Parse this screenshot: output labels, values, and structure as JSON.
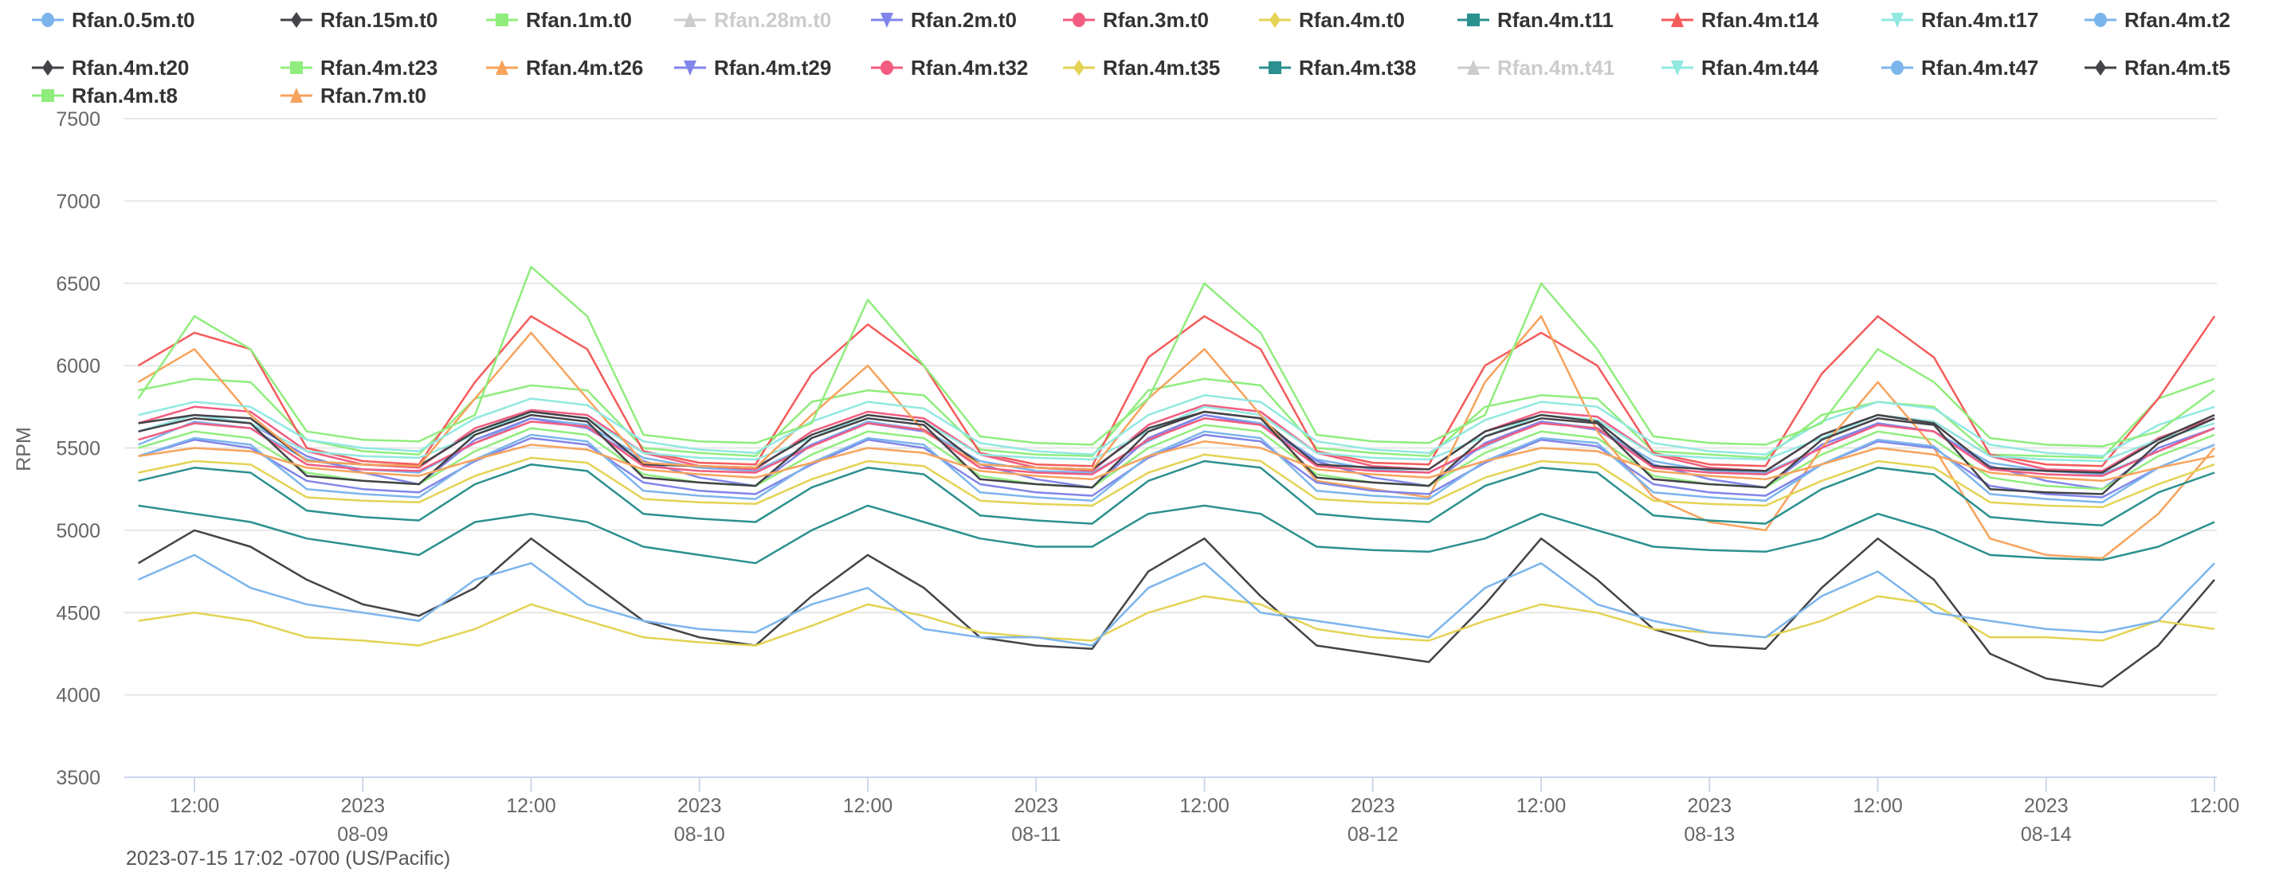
{
  "chart_data": {
    "type": "line",
    "title": "",
    "xlabel": "",
    "ylabel": "RPM",
    "ylim": [
      3500,
      7500
    ],
    "yticks": [
      "3500",
      "4000",
      "4500",
      "5000",
      "5500",
      "6000",
      "6500",
      "7000",
      "7500"
    ],
    "xlim": [
      "2023-08-08 07:00",
      "2023-08-14 12:10"
    ],
    "xticks": [
      {
        "at": "2023-08-08 12:00",
        "line1": "12:00",
        "line2": ""
      },
      {
        "at": "2023-08-09 00:00",
        "line1": "2023",
        "line2": "08-09"
      },
      {
        "at": "2023-08-09 12:00",
        "line1": "12:00",
        "line2": ""
      },
      {
        "at": "2023-08-10 00:00",
        "line1": "2023",
        "line2": "08-10"
      },
      {
        "at": "2023-08-10 12:00",
        "line1": "12:00",
        "line2": ""
      },
      {
        "at": "2023-08-11 00:00",
        "line1": "2023",
        "line2": "08-11"
      },
      {
        "at": "2023-08-11 12:00",
        "line1": "12:00",
        "line2": ""
      },
      {
        "at": "2023-08-12 00:00",
        "line1": "2023",
        "line2": "08-12"
      },
      {
        "at": "2023-08-12 12:00",
        "line1": "12:00",
        "line2": ""
      },
      {
        "at": "2023-08-13 00:00",
        "line1": "2023",
        "line2": "08-13"
      },
      {
        "at": "2023-08-13 12:00",
        "line1": "12:00",
        "line2": ""
      },
      {
        "at": "2023-08-14 00:00",
        "line1": "2023",
        "line2": "08-14"
      },
      {
        "at": "2023-08-14 12:00",
        "line1": "12:00",
        "line2": ""
      }
    ],
    "x_start": "2023-08-08 08:00",
    "x_step_hours": 4,
    "grid": true,
    "legend_placement": "top",
    "series": [
      {
        "name": "Rfan.0.5m.t0",
        "color": "#7cb5ec",
        "marker": "circle",
        "visible": true,
        "values": [
          5520,
          5660,
          5620,
          5430,
          5370,
          5350,
          5530,
          5680,
          5640,
          5440,
          5380,
          5360,
          5520,
          5660,
          5610,
          5420,
          5360,
          5350,
          5540,
          5700,
          5650,
          5430,
          5370,
          5350,
          5510,
          5660,
          5620,
          5420,
          5360,
          5350,
          5500,
          5650,
          5600,
          5410,
          5360,
          5340,
          5480,
          5620
        ]
      },
      {
        "name": "Rfan.15m.t0",
        "color": "#434348",
        "marker": "diamond",
        "visible": true,
        "values": [
          4800,
          5000,
          4900,
          4700,
          4550,
          4480,
          4650,
          4950,
          4700,
          4450,
          4350,
          4300,
          4600,
          4850,
          4650,
          4350,
          4300,
          4280,
          4750,
          4950,
          4600,
          4300,
          4250,
          4200,
          4550,
          4950,
          4700,
          4400,
          4300,
          4280,
          4650,
          4950,
          4700,
          4250,
          4100,
          4050,
          4300,
          4700
        ]
      },
      {
        "name": "Rfan.1m.t0",
        "color": "#90ed7d",
        "marker": "square",
        "visible": true,
        "values": [
          5850,
          5920,
          5900,
          5550,
          5480,
          5460,
          5800,
          5880,
          5850,
          5500,
          5470,
          5450,
          5780,
          5850,
          5820,
          5490,
          5460,
          5450,
          5850,
          5920,
          5880,
          5500,
          5470,
          5450,
          5750,
          5820,
          5800,
          5480,
          5460,
          5440,
          5700,
          5780,
          5750,
          5460,
          5450,
          5440,
          5800,
          5920
        ]
      },
      {
        "name": "Rfan.28m.t0",
        "color": "#cccccc",
        "marker": "triangle",
        "visible": false
      },
      {
        "name": "Rfan.2m.t0",
        "color": "#8085e9",
        "marker": "triangle-down",
        "visible": true,
        "values": [
          5600,
          5700,
          5650,
          5450,
          5350,
          5280,
          5550,
          5680,
          5620,
          5420,
          5320,
          5270,
          5520,
          5650,
          5600,
          5400,
          5310,
          5260,
          5560,
          5700,
          5640,
          5420,
          5320,
          5270,
          5530,
          5660,
          5610,
          5400,
          5310,
          5260,
          5520,
          5650,
          5600,
          5390,
          5300,
          5250,
          5500,
          5620
        ]
      },
      {
        "name": "Rfan.3m.t0",
        "color": "#f15c80",
        "marker": "circle",
        "visible": true,
        "values": [
          5650,
          5750,
          5720,
          5480,
          5400,
          5380,
          5620,
          5730,
          5700,
          5470,
          5390,
          5370,
          5600,
          5720,
          5680,
          5460,
          5380,
          5360,
          5640,
          5760,
          5720,
          5470,
          5390,
          5370,
          5600,
          5720,
          5690,
          5460,
          5380,
          5360,
          5580,
          5700,
          5660,
          5450,
          5370,
          5360,
          5560,
          5680
        ]
      },
      {
        "name": "Rfan.4m.t0",
        "color": "#e4d354",
        "marker": "diamond",
        "visible": true,
        "values": [
          4450,
          4500,
          4450,
          4350,
          4330,
          4300,
          4400,
          4550,
          4450,
          4350,
          4320,
          4300,
          4420,
          4550,
          4480,
          4380,
          4350,
          4330,
          4500,
          4600,
          4550,
          4400,
          4350,
          4330,
          4450,
          4550,
          4500,
          4400,
          4380,
          4350,
          4450,
          4600,
          4550,
          4350,
          4350,
          4330,
          4450,
          4400
        ]
      },
      {
        "name": "Rfan.4m.t11",
        "color": "#2b908f",
        "marker": "square",
        "visible": true,
        "values": [
          5150,
          5100,
          5050,
          4950,
          4900,
          4850,
          5050,
          5100,
          5050,
          4900,
          4850,
          4800,
          5000,
          5150,
          5050,
          4950,
          4900,
          4900,
          5100,
          5150,
          5100,
          4900,
          4880,
          4870,
          4950,
          5100,
          5000,
          4900,
          4880,
          4870,
          4950,
          5100,
          5000,
          4850,
          4830,
          4820,
          4900,
          5050
        ]
      },
      {
        "name": "Rfan.4m.t14",
        "color": "#f45b5b",
        "marker": "triangle",
        "visible": true,
        "values": [
          6000,
          6200,
          6100,
          5500,
          5420,
          5400,
          5900,
          6300,
          6100,
          5480,
          5410,
          5400,
          5950,
          6250,
          6000,
          5470,
          5400,
          5390,
          6050,
          6300,
          6100,
          5480,
          5410,
          5400,
          6000,
          6200,
          6000,
          5470,
          5400,
          5390,
          5950,
          6300,
          6050,
          5460,
          5400,
          5390,
          5800,
          6300
        ]
      },
      {
        "name": "Rfan.4m.t17",
        "color": "#91e8e1",
        "marker": "triangle-down",
        "visible": true,
        "values": [
          5600,
          5700,
          5650,
          5480,
          5450,
          5440,
          5580,
          5720,
          5680,
          5470,
          5440,
          5430,
          5560,
          5700,
          5660,
          5460,
          5440,
          5430,
          5600,
          5750,
          5700,
          5470,
          5440,
          5430,
          5570,
          5700,
          5670,
          5460,
          5440,
          5430,
          5560,
          5700,
          5660,
          5450,
          5430,
          5420,
          5550,
          5650
        ]
      },
      {
        "name": "Rfan.4m.t2",
        "color": "#7cb5ec",
        "marker": "circle",
        "visible": true,
        "values": [
          4700,
          4850,
          4650,
          4550,
          4500,
          4450,
          4700,
          4800,
          4550,
          4450,
          4400,
          4380,
          4550,
          4650,
          4400,
          4350,
          4350,
          4300,
          4650,
          4800,
          4500,
          4450,
          4400,
          4350,
          4650,
          4800,
          4550,
          4450,
          4380,
          4350,
          4600,
          4750,
          4500,
          4450,
          4400,
          4380,
          4450,
          4800
        ]
      },
      {
        "name": "Rfan.4m.t20",
        "color": "#434348",
        "marker": "diamond",
        "visible": true,
        "values": [
          5650,
          5700,
          5680,
          5420,
          5400,
          5390,
          5600,
          5720,
          5680,
          5400,
          5390,
          5380,
          5580,
          5700,
          5660,
          5400,
          5380,
          5370,
          5620,
          5720,
          5680,
          5400,
          5380,
          5370,
          5600,
          5700,
          5660,
          5390,
          5370,
          5360,
          5580,
          5700,
          5650,
          5380,
          5360,
          5350,
          5550,
          5700
        ]
      },
      {
        "name": "Rfan.4m.t23",
        "color": "#90ed7d",
        "marker": "square",
        "visible": true,
        "values": [
          5500,
          5600,
          5560,
          5350,
          5300,
          5280,
          5480,
          5620,
          5580,
          5340,
          5290,
          5270,
          5460,
          5600,
          5560,
          5330,
          5280,
          5260,
          5500,
          5640,
          5600,
          5340,
          5290,
          5270,
          5470,
          5600,
          5560,
          5330,
          5280,
          5260,
          5460,
          5600,
          5550,
          5320,
          5270,
          5250,
          5450,
          5580
        ]
      },
      {
        "name": "Rfan.4m.t26",
        "color": "#f7a35c",
        "marker": "triangle",
        "visible": true,
        "values": [
          5900,
          6100,
          5700,
          5420,
          5400,
          5390,
          5800,
          6200,
          5800,
          5410,
          5390,
          5380,
          5700,
          6000,
          5600,
          5400,
          5380,
          5370,
          5800,
          6100,
          5700,
          5300,
          5250,
          5200,
          5900,
          6300,
          5600,
          5200,
          5050,
          5000,
          5500,
          5900,
          5500,
          4950,
          4850,
          4830,
          5100,
          5500
        ]
      },
      {
        "name": "Rfan.4m.t29",
        "color": "#8085e9",
        "marker": "triangle-down",
        "visible": true,
        "values": [
          5450,
          5550,
          5500,
          5300,
          5250,
          5230,
          5420,
          5560,
          5520,
          5290,
          5240,
          5220,
          5400,
          5550,
          5500,
          5280,
          5230,
          5210,
          5440,
          5580,
          5540,
          5290,
          5240,
          5220,
          5410,
          5550,
          5510,
          5280,
          5230,
          5210,
          5400,
          5540,
          5500,
          5270,
          5220,
          5200,
          5380,
          5520
        ]
      },
      {
        "name": "Rfan.4m.t32",
        "color": "#f15c80",
        "marker": "circle",
        "visible": true,
        "values": [
          5550,
          5650,
          5620,
          5400,
          5370,
          5360,
          5530,
          5660,
          5630,
          5390,
          5360,
          5350,
          5510,
          5650,
          5610,
          5380,
          5350,
          5340,
          5550,
          5680,
          5640,
          5390,
          5360,
          5350,
          5520,
          5650,
          5620,
          5380,
          5350,
          5340,
          5500,
          5640,
          5600,
          5370,
          5340,
          5330,
          5480,
          5620
        ]
      },
      {
        "name": "Rfan.4m.t35",
        "color": "#e4d354",
        "marker": "diamond",
        "visible": true,
        "values": [
          5350,
          5420,
          5400,
          5200,
          5180,
          5170,
          5330,
          5440,
          5410,
          5190,
          5170,
          5160,
          5310,
          5420,
          5390,
          5180,
          5160,
          5150,
          5350,
          5460,
          5420,
          5190,
          5170,
          5160,
          5320,
          5420,
          5400,
          5180,
          5160,
          5150,
          5300,
          5420,
          5380,
          5170,
          5150,
          5140,
          5280,
          5400
        ]
      },
      {
        "name": "Rfan.4m.t38",
        "color": "#2b908f",
        "marker": "square",
        "visible": true,
        "values": [
          5300,
          5380,
          5350,
          5120,
          5080,
          5060,
          5280,
          5400,
          5360,
          5100,
          5070,
          5050,
          5260,
          5380,
          5340,
          5090,
          5060,
          5040,
          5300,
          5420,
          5380,
          5100,
          5070,
          5050,
          5270,
          5380,
          5350,
          5090,
          5060,
          5040,
          5250,
          5380,
          5340,
          5080,
          5050,
          5030,
          5230,
          5350
        ]
      },
      {
        "name": "Rfan.4m.t41",
        "color": "#cccccc",
        "marker": "triangle",
        "visible": false
      },
      {
        "name": "Rfan.4m.t44",
        "color": "#91e8e1",
        "marker": "triangle-down",
        "visible": true,
        "values": [
          5700,
          5780,
          5750,
          5550,
          5500,
          5480,
          5680,
          5800,
          5760,
          5540,
          5490,
          5470,
          5660,
          5780,
          5740,
          5530,
          5480,
          5460,
          5700,
          5820,
          5780,
          5540,
          5490,
          5470,
          5670,
          5780,
          5750,
          5530,
          5480,
          5460,
          5660,
          5780,
          5740,
          5520,
          5470,
          5450,
          5640,
          5750
        ]
      },
      {
        "name": "Rfan.4m.t47",
        "color": "#7cb5ec",
        "marker": "circle",
        "visible": true,
        "values": [
          5450,
          5560,
          5520,
          5250,
          5220,
          5200,
          5430,
          5580,
          5540,
          5240,
          5210,
          5190,
          5410,
          5560,
          5520,
          5230,
          5200,
          5180,
          5450,
          5600,
          5560,
          5240,
          5210,
          5190,
          5420,
          5560,
          5530,
          5230,
          5200,
          5180,
          5400,
          5550,
          5510,
          5220,
          5190,
          5170,
          5380,
          5520
        ]
      },
      {
        "name": "Rfan.4m.t5",
        "color": "#434348",
        "marker": "diamond",
        "visible": true,
        "values": [
          5600,
          5680,
          5650,
          5330,
          5300,
          5280,
          5580,
          5700,
          5660,
          5320,
          5290,
          5270,
          5560,
          5680,
          5640,
          5310,
          5280,
          5260,
          5600,
          5720,
          5680,
          5320,
          5290,
          5270,
          5570,
          5680,
          5650,
          5310,
          5280,
          5260,
          5550,
          5680,
          5640,
          5250,
          5230,
          5220,
          5530,
          5680
        ]
      },
      {
        "name": "Rfan.4m.t8",
        "color": "#90ed7d",
        "marker": "square",
        "visible": true,
        "values": [
          5800,
          6300,
          6100,
          5600,
          5550,
          5540,
          5700,
          6600,
          6300,
          5580,
          5540,
          5530,
          5650,
          6400,
          6000,
          5570,
          5530,
          5520,
          5800,
          6500,
          6200,
          5580,
          5540,
          5530,
          5700,
          6500,
          6100,
          5570,
          5530,
          5520,
          5650,
          6100,
          5900,
          5560,
          5520,
          5510,
          5600,
          5850
        ]
      },
      {
        "name": "Rfan.7m.t0",
        "color": "#f7a35c",
        "marker": "triangle",
        "visible": true,
        "values": [
          5450,
          5500,
          5480,
          5380,
          5350,
          5330,
          5430,
          5520,
          5490,
          5370,
          5340,
          5320,
          5410,
          5500,
          5470,
          5360,
          5330,
          5310,
          5450,
          5540,
          5500,
          5370,
          5340,
          5320,
          5420,
          5500,
          5480,
          5360,
          5330,
          5310,
          5400,
          5500,
          5460,
          5350,
          5320,
          5300,
          5380,
          5450
        ]
      }
    ]
  },
  "footer": {
    "timestamp": "2023-07-15 17:02 -0700 (US/Pacific)"
  }
}
